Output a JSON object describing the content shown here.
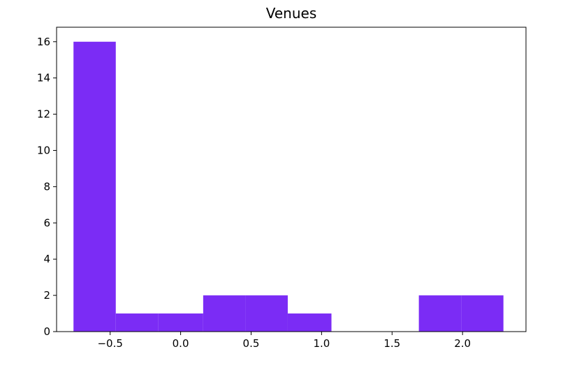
{
  "chart_data": {
    "type": "bar",
    "subtype": "histogram",
    "title": "Venues",
    "xlabel": "",
    "ylabel": "",
    "xlim": [
      -0.88,
      2.45
    ],
    "ylim": [
      0,
      16.8
    ],
    "x_ticks": [
      -0.5,
      0.0,
      0.5,
      1.0,
      1.5,
      2.0
    ],
    "x_tick_labels": [
      "−0.5",
      "0.0",
      "0.5",
      "1.0",
      "1.5",
      "2.0"
    ],
    "y_ticks": [
      0,
      2,
      4,
      6,
      8,
      10,
      12,
      14,
      16
    ],
    "y_tick_labels": [
      "0",
      "2",
      "4",
      "6",
      "8",
      "10",
      "12",
      "14",
      "16"
    ],
    "bins": [
      {
        "start": -0.76,
        "end": -0.46,
        "count": 16
      },
      {
        "start": -0.46,
        "end": -0.16,
        "count": 1
      },
      {
        "start": -0.16,
        "end": 0.16,
        "count": 1
      },
      {
        "start": 0.16,
        "end": 0.46,
        "count": 2
      },
      {
        "start": 0.46,
        "end": 0.76,
        "count": 2
      },
      {
        "start": 0.76,
        "end": 1.07,
        "count": 1
      },
      {
        "start": 1.07,
        "end": 1.38,
        "count": 0
      },
      {
        "start": 1.38,
        "end": 1.69,
        "count": 0
      },
      {
        "start": 1.69,
        "end": 1.99,
        "count": 2
      },
      {
        "start": 1.99,
        "end": 2.29,
        "count": 2
      }
    ],
    "bar_color": "#7b2cf5",
    "grid": false,
    "legend": false
  }
}
